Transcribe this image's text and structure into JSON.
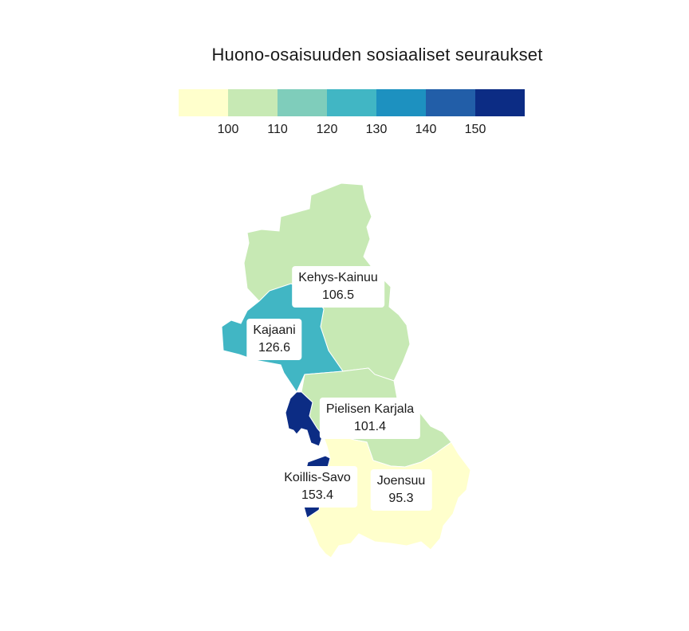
{
  "title": "Huono-osaisuuden sosiaaliset seuraukset",
  "legend": {
    "colors": [
      "#ffffcc",
      "#c7e9b4",
      "#7fcdbb",
      "#41b6c4",
      "#1d91c0",
      "#225ea8",
      "#0c2c84"
    ],
    "ticks": [
      "100",
      "110",
      "120",
      "130",
      "140",
      "150"
    ]
  },
  "regions": [
    {
      "id": "kehys-kainuu",
      "name": "Kehys-Kainuu",
      "value": "106.5",
      "color": "#c7e9b4"
    },
    {
      "id": "kajaani",
      "name": "Kajaani",
      "value": "126.6",
      "color": "#41b6c4"
    },
    {
      "id": "pielisen-karjala",
      "name": "Pielisen Karjala",
      "value": "101.4",
      "color": "#c7e9b4"
    },
    {
      "id": "koillis-savo",
      "name": "Koillis-Savo",
      "value": "153.4",
      "color": "#0c2c84"
    },
    {
      "id": "joensuu",
      "name": "Joensuu",
      "value": "95.3",
      "color": "#ffffcc"
    }
  ]
}
